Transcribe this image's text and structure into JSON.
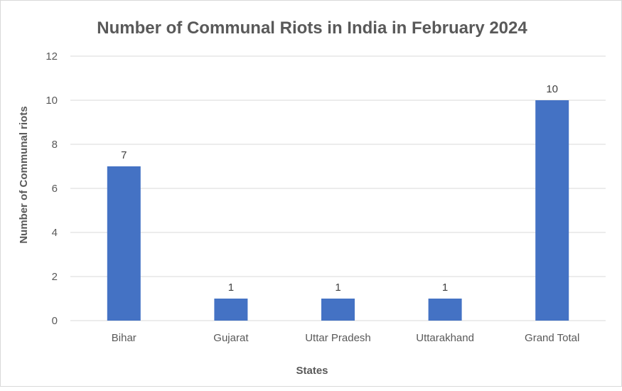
{
  "chart_data": {
    "type": "bar",
    "title": "Number of Communal Riots in India in February 2024",
    "xlabel": "States",
    "ylabel": "Number of Communal riots",
    "categories": [
      "Bihar",
      "Gujarat",
      "Uttar Pradesh",
      "Uttarakhand",
      "Grand Total"
    ],
    "values": [
      7,
      1,
      1,
      1,
      10
    ],
    "ylim": [
      0,
      12
    ],
    "yticks": [
      "0",
      "2",
      "4",
      "6",
      "8",
      "10",
      "12"
    ],
    "grid": true,
    "legend": "none",
    "bar_color": "#4472C4"
  }
}
